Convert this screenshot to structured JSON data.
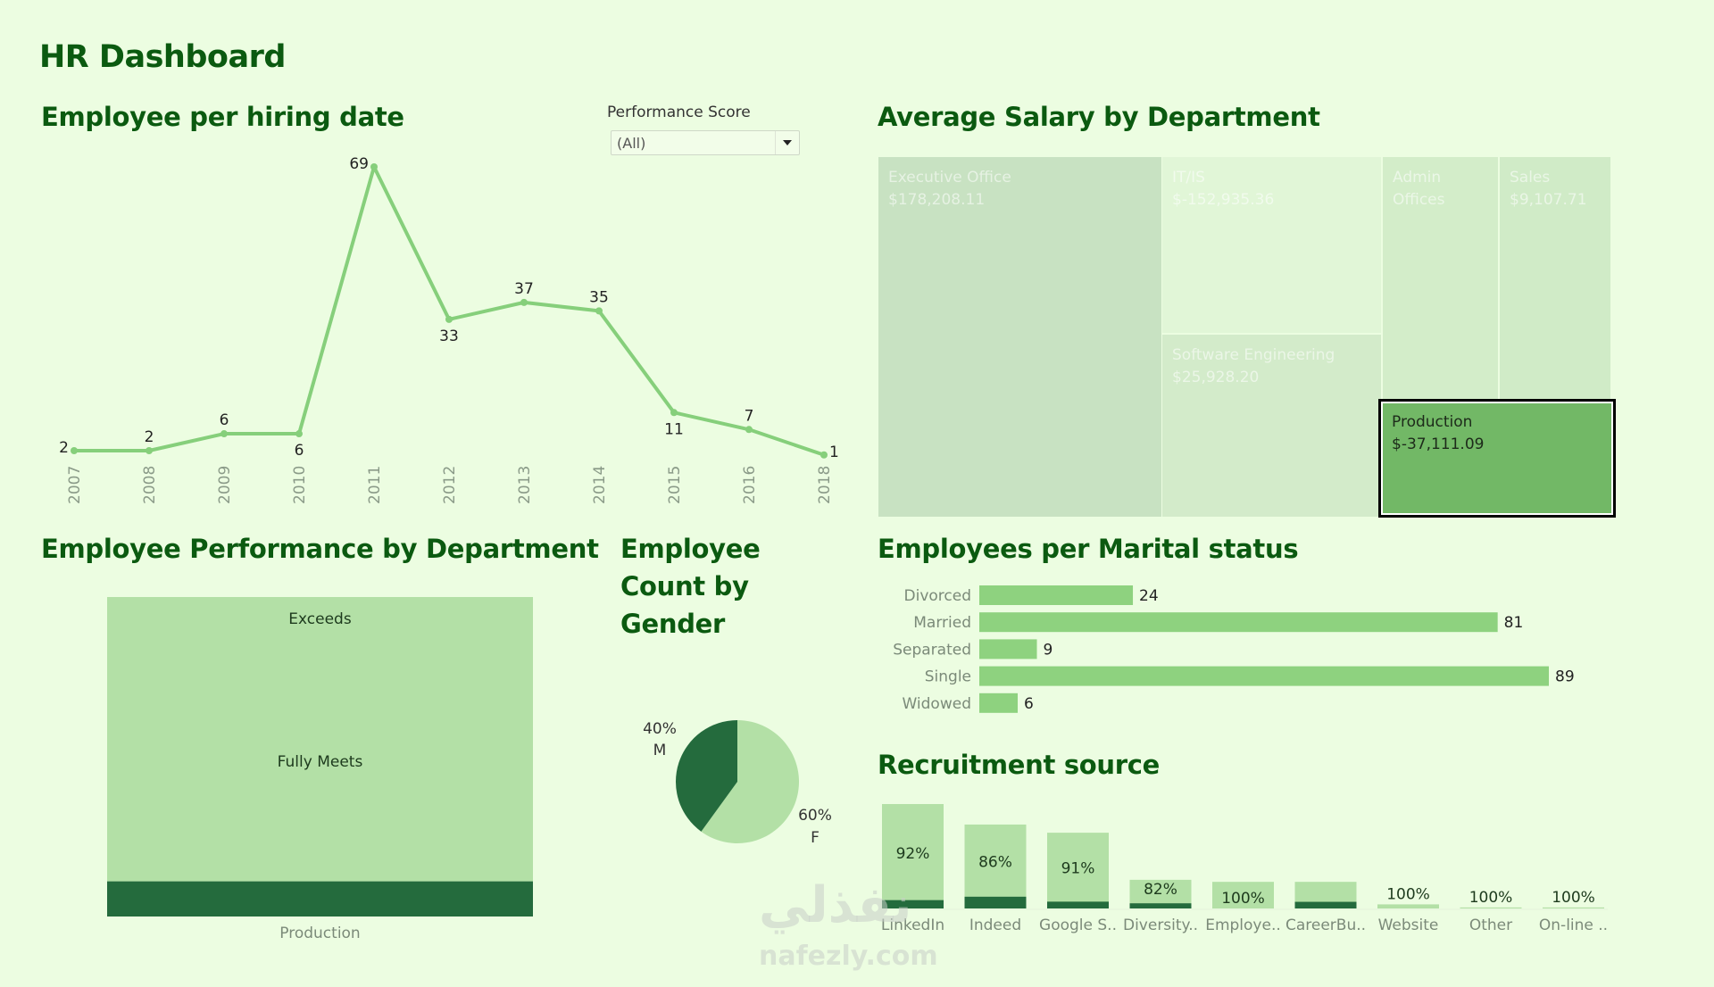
{
  "dashboard": {
    "title": "HR Dashboard"
  },
  "filter": {
    "label": "Performance Score",
    "value": "(All)",
    "icon": "chevron-down-icon"
  },
  "titles": {
    "hiring": "Employee per hiring date",
    "salary": "Average Salary by Department",
    "performance": "Employee Performance by Department",
    "gender": "Employee Count by Gender",
    "marital": "Employees per Marital status",
    "recruitment": "Recruitment source"
  },
  "watermark": {
    "arabic": "نفذلي",
    "latin": "nafezly.com"
  },
  "colors": {
    "background": "#ecfde1",
    "title": "#0b5a10",
    "line": "#86cf7b",
    "bar": "#8ed27f",
    "light_bar": "#b3e0a6",
    "dark_bar": "#246b3d",
    "highlight": "#72b866"
  },
  "chart_data": [
    {
      "id": "hiring",
      "type": "line",
      "title": "Employee per hiring date",
      "xlabel": "",
      "ylabel": "",
      "x": [
        "2007",
        "2008",
        "2009",
        "2010",
        "2011",
        "2012",
        "2013",
        "2014",
        "2015",
        "2016",
        "2018"
      ],
      "values": [
        2,
        2,
        6,
        6,
        69,
        33,
        37,
        35,
        11,
        7,
        1
      ],
      "label_position": [
        "left",
        "above",
        "above",
        "below",
        "left",
        "below",
        "above",
        "above",
        "below",
        "above",
        "right"
      ],
      "ylim": [
        0,
        69
      ],
      "grid": false
    },
    {
      "id": "salary",
      "type": "treemap",
      "title": "Average Salary by Department",
      "items": [
        {
          "name": "Executive Office",
          "value_label": "$178,208.11",
          "value": 178208.11,
          "highlighted": false
        },
        {
          "name": "IT/IS",
          "value_label": "$-152,935.36",
          "value": -152935.36,
          "highlighted": false
        },
        {
          "name": "Software Engineering",
          "value_label": "$25,928.20",
          "value": 25928.2,
          "highlighted": false
        },
        {
          "name": "Admin Offices",
          "value_label": "",
          "value": null,
          "highlighted": false
        },
        {
          "name": "Sales",
          "value_label": "$9,107.71",
          "value": 9107.71,
          "highlighted": false
        },
        {
          "name": "Production",
          "value_label": "$-37,111.09",
          "value": -37111.09,
          "highlighted": true
        }
      ]
    },
    {
      "id": "performance",
      "type": "bar",
      "stacked": true,
      "title": "Employee Performance by Department",
      "categories": [
        "Production"
      ],
      "segments": [
        {
          "name": "Exceeds",
          "share": 0.0,
          "color": "#b3e0a6"
        },
        {
          "name": "Fully Meets",
          "share": 0.89,
          "color": "#b3e0a6"
        },
        {
          "name": "",
          "share": 0.11,
          "color": "#246b3d"
        }
      ]
    },
    {
      "id": "gender",
      "type": "pie",
      "title": "Employee Count by Gender",
      "slices": [
        {
          "label": "F",
          "percent": 60,
          "display": "60%",
          "color": "#b3e0a6"
        },
        {
          "label": "M",
          "percent": 40,
          "display": "40%",
          "color": "#246b3d"
        }
      ]
    },
    {
      "id": "marital",
      "type": "bar",
      "orientation": "horizontal",
      "title": "Employees per Marital status",
      "categories": [
        "Divorced",
        "Married",
        "Separated",
        "Single",
        "Widowed"
      ],
      "values": [
        24,
        81,
        9,
        89,
        6
      ],
      "xlim": [
        0,
        89
      ]
    },
    {
      "id": "recruitment",
      "type": "bar",
      "stacked": true,
      "title": "Recruitment source",
      "categories": [
        "LinkedIn",
        "Indeed",
        "Google S..",
        "Diversity..",
        "Employe..",
        "CareerBu..",
        "Website",
        "Other",
        "On-line .."
      ],
      "totals": [
        51,
        41,
        37,
        14,
        13,
        13,
        2,
        0.5,
        0.5
      ],
      "dark_share": [
        0.08,
        0.14,
        0.09,
        0.18,
        0,
        0.25,
        0,
        0,
        0
      ],
      "percent_labels": [
        "92%",
        "86%",
        "91%",
        "82%",
        "100%",
        "",
        "100%",
        "100%",
        "100%"
      ]
    }
  ]
}
